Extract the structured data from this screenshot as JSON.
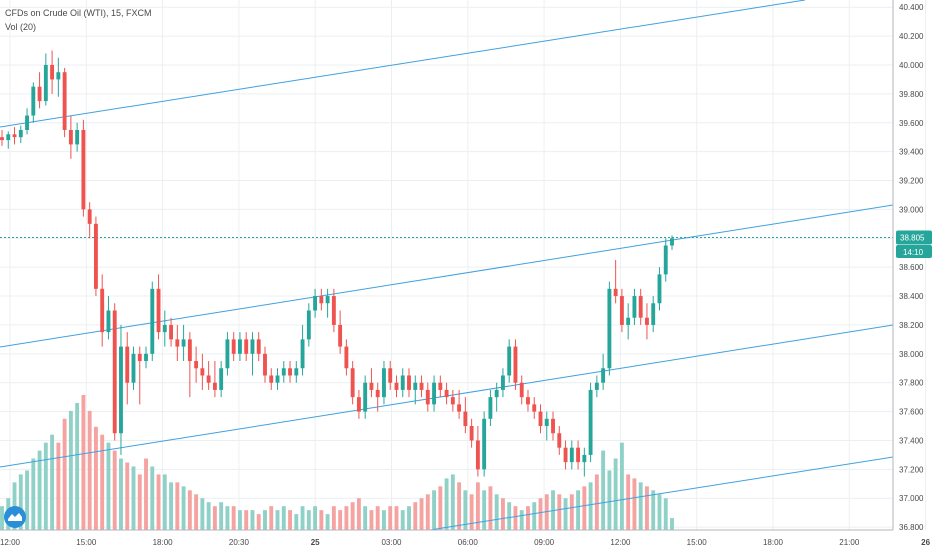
{
  "header": {
    "title": "CFDs on Crude Oil (WTI), 15, FXCM",
    "volume_label": "Vol (20)"
  },
  "colors": {
    "up": "#26a69a",
    "down": "#ef5350",
    "vol_up": "#8fd1c7",
    "vol_down": "#f5a3a1",
    "trend": "#3fa0e0",
    "grid": "#eceff2",
    "axis": "#b2b5be",
    "price_badge": "#2196f3"
  },
  "chart_data": {
    "type": "candlestick",
    "title": "CFDs on Crude Oil (WTI), 15, FXCM",
    "price_axis": {
      "ticks": [
        "40.400",
        "40.200",
        "40.000",
        "39.800",
        "39.600",
        "39.400",
        "39.200",
        "39.000",
        "38.800",
        "38.600",
        "38.400",
        "38.200",
        "38.000",
        "37.800",
        "37.600",
        "37.400",
        "37.200",
        "37.000",
        "36.800"
      ],
      "range": [
        36.78,
        40.45
      ]
    },
    "time_axis": {
      "ticks": [
        "12:00",
        "15:00",
        "18:00",
        "20:30",
        "25",
        "03:00",
        "06:00",
        "09:00",
        "12:00",
        "15:00",
        "18:00",
        "21:00",
        "26"
      ]
    },
    "last_price": "38.805",
    "countdown": "14:10",
    "candles": [
      [
        39.5,
        39.55,
        39.44,
        39.48
      ],
      [
        39.48,
        39.54,
        39.42,
        39.52
      ],
      [
        39.52,
        39.57,
        39.45,
        39.5
      ],
      [
        39.5,
        39.58,
        39.46,
        39.55
      ],
      [
        39.55,
        39.7,
        39.52,
        39.65
      ],
      [
        39.65,
        39.88,
        39.6,
        39.85
      ],
      [
        39.85,
        39.95,
        39.7,
        39.75
      ],
      [
        39.75,
        40.08,
        39.72,
        40.0
      ],
      [
        40.0,
        40.1,
        39.8,
        39.9
      ],
      [
        39.9,
        40.05,
        39.78,
        39.95
      ],
      [
        39.95,
        39.98,
        39.5,
        39.55
      ],
      [
        39.55,
        39.65,
        39.35,
        39.45
      ],
      [
        39.45,
        39.6,
        39.4,
        39.55
      ],
      [
        39.55,
        39.62,
        38.95,
        39.0
      ],
      [
        39.0,
        39.05,
        38.8,
        38.9
      ],
      [
        38.9,
        38.95,
        38.4,
        38.45
      ],
      [
        38.45,
        38.55,
        38.05,
        38.15
      ],
      [
        38.15,
        38.4,
        38.1,
        38.3
      ],
      [
        38.3,
        38.35,
        37.4,
        37.45
      ],
      [
        37.45,
        38.2,
        37.3,
        38.05
      ],
      [
        38.05,
        38.15,
        37.65,
        37.8
      ],
      [
        37.8,
        38.05,
        37.75,
        38.0
      ],
      [
        38.0,
        38.05,
        37.65,
        37.95
      ],
      [
        37.95,
        38.05,
        37.9,
        38.0
      ],
      [
        38.0,
        38.5,
        37.95,
        38.45
      ],
      [
        38.45,
        38.55,
        38.1,
        38.15
      ],
      [
        38.15,
        38.3,
        38.05,
        38.2
      ],
      [
        38.2,
        38.25,
        38.05,
        38.1
      ],
      [
        38.1,
        38.2,
        37.95,
        38.05
      ],
      [
        38.05,
        38.2,
        37.95,
        38.1
      ],
      [
        38.1,
        38.15,
        37.7,
        37.95
      ],
      [
        37.95,
        38.05,
        37.8,
        37.9
      ],
      [
        37.9,
        38.0,
        37.75,
        37.85
      ],
      [
        37.85,
        37.95,
        37.75,
        37.8
      ],
      [
        37.8,
        37.95,
        37.7,
        37.75
      ],
      [
        37.75,
        37.95,
        37.7,
        37.9
      ],
      [
        37.9,
        38.15,
        37.85,
        38.1
      ],
      [
        38.1,
        38.15,
        37.95,
        38.0
      ],
      [
        38.0,
        38.15,
        37.95,
        38.1
      ],
      [
        38.1,
        38.15,
        37.95,
        38.0
      ],
      [
        38.0,
        38.15,
        37.85,
        38.1
      ],
      [
        38.1,
        38.15,
        37.95,
        38.0
      ],
      [
        38.0,
        38.05,
        37.8,
        37.85
      ],
      [
        37.85,
        37.9,
        37.75,
        37.8
      ],
      [
        37.8,
        37.9,
        37.75,
        37.85
      ],
      [
        37.85,
        37.95,
        37.8,
        37.9
      ],
      [
        37.9,
        37.95,
        37.8,
        37.85
      ],
      [
        37.85,
        37.95,
        37.8,
        37.9
      ],
      [
        37.9,
        38.2,
        37.85,
        38.1
      ],
      [
        38.1,
        38.35,
        38.05,
        38.3
      ],
      [
        38.3,
        38.45,
        38.25,
        38.4
      ],
      [
        38.4,
        38.45,
        38.3,
        38.35
      ],
      [
        38.35,
        38.45,
        38.25,
        38.4
      ],
      [
        38.4,
        38.45,
        38.15,
        38.2
      ],
      [
        38.2,
        38.3,
        38.0,
        38.05
      ],
      [
        38.05,
        38.1,
        37.85,
        37.9
      ],
      [
        37.9,
        37.95,
        37.65,
        37.7
      ],
      [
        37.7,
        37.75,
        37.55,
        37.6
      ],
      [
        37.6,
        37.85,
        37.55,
        37.8
      ],
      [
        37.8,
        37.9,
        37.7,
        37.75
      ],
      [
        37.75,
        37.8,
        37.6,
        37.7
      ],
      [
        37.7,
        37.95,
        37.65,
        37.9
      ],
      [
        37.9,
        37.95,
        37.75,
        37.8
      ],
      [
        37.8,
        37.85,
        37.7,
        37.75
      ],
      [
        37.75,
        37.9,
        37.7,
        37.85
      ],
      [
        37.85,
        37.9,
        37.7,
        37.75
      ],
      [
        37.75,
        37.85,
        37.65,
        37.8
      ],
      [
        37.8,
        37.85,
        37.7,
        37.75
      ],
      [
        37.75,
        37.8,
        37.6,
        37.65
      ],
      [
        37.65,
        37.85,
        37.6,
        37.8
      ],
      [
        37.8,
        37.85,
        37.7,
        37.75
      ],
      [
        37.75,
        37.8,
        37.65,
        37.7
      ],
      [
        37.7,
        37.75,
        37.6,
        37.65
      ],
      [
        37.65,
        37.75,
        37.55,
        37.6
      ],
      [
        37.6,
        37.7,
        37.45,
        37.5
      ],
      [
        37.5,
        37.55,
        37.35,
        37.4
      ],
      [
        37.4,
        37.5,
        37.15,
        37.2
      ],
      [
        37.2,
        37.6,
        37.15,
        37.55
      ],
      [
        37.55,
        37.75,
        37.5,
        37.7
      ],
      [
        37.7,
        37.8,
        37.6,
        37.75
      ],
      [
        37.75,
        37.9,
        37.7,
        37.85
      ],
      [
        37.85,
        38.1,
        37.8,
        38.05
      ],
      [
        38.05,
        38.1,
        37.75,
        37.8
      ],
      [
        37.8,
        37.85,
        37.65,
        37.7
      ],
      [
        37.7,
        37.75,
        37.6,
        37.65
      ],
      [
        37.65,
        37.7,
        37.55,
        37.6
      ],
      [
        37.6,
        37.65,
        37.45,
        37.5
      ],
      [
        37.5,
        37.6,
        37.4,
        37.55
      ],
      [
        37.55,
        37.6,
        37.4,
        37.45
      ],
      [
        37.45,
        37.5,
        37.3,
        37.35
      ],
      [
        37.35,
        37.4,
        37.2,
        37.25
      ],
      [
        37.25,
        37.4,
        37.2,
        37.35
      ],
      [
        37.35,
        37.4,
        37.2,
        37.25
      ],
      [
        37.25,
        37.35,
        37.15,
        37.3
      ],
      [
        37.3,
        37.8,
        37.25,
        37.75
      ],
      [
        37.75,
        37.85,
        37.7,
        37.8
      ],
      [
        37.8,
        38.0,
        37.75,
        37.9
      ],
      [
        37.9,
        38.5,
        37.85,
        38.45
      ],
      [
        38.45,
        38.65,
        38.35,
        38.4
      ],
      [
        38.4,
        38.45,
        38.15,
        38.2
      ],
      [
        38.2,
        38.35,
        38.1,
        38.25
      ],
      [
        38.25,
        38.45,
        38.2,
        38.4
      ],
      [
        38.4,
        38.45,
        38.2,
        38.25
      ],
      [
        38.25,
        38.35,
        38.1,
        38.2
      ],
      [
        38.2,
        38.4,
        38.15,
        38.35
      ],
      [
        38.35,
        38.6,
        38.3,
        38.55
      ],
      [
        38.55,
        38.8,
        38.5,
        38.75
      ],
      [
        38.75,
        38.82,
        38.72,
        38.8
      ]
    ],
    "volumes": [
      [
        6,
        1
      ],
      [
        8,
        1
      ],
      [
        12,
        1
      ],
      [
        14,
        1
      ],
      [
        15,
        1
      ],
      [
        18,
        1
      ],
      [
        20,
        1
      ],
      [
        22,
        1
      ],
      [
        24,
        1
      ],
      [
        22,
        0
      ],
      [
        28,
        0
      ],
      [
        30,
        1
      ],
      [
        32,
        1
      ],
      [
        34,
        0
      ],
      [
        30,
        0
      ],
      [
        26,
        0
      ],
      [
        24,
        0
      ],
      [
        22,
        1
      ],
      [
        20,
        0
      ],
      [
        18,
        1
      ],
      [
        17,
        0
      ],
      [
        16,
        1
      ],
      [
        14,
        0
      ],
      [
        18,
        0
      ],
      [
        16,
        1
      ],
      [
        14,
        0
      ],
      [
        14,
        1
      ],
      [
        12,
        1
      ],
      [
        12,
        0
      ],
      [
        11,
        1
      ],
      [
        10,
        0
      ],
      [
        9,
        0
      ],
      [
        8,
        1
      ],
      [
        7,
        1
      ],
      [
        6,
        0
      ],
      [
        7,
        1
      ],
      [
        6,
        1
      ],
      [
        6,
        0
      ],
      [
        5,
        1
      ],
      [
        5,
        0
      ],
      [
        5,
        1
      ],
      [
        4,
        0
      ],
      [
        5,
        1
      ],
      [
        6,
        0
      ],
      [
        5,
        1
      ],
      [
        6,
        1
      ],
      [
        5,
        0
      ],
      [
        4,
        1
      ],
      [
        6,
        1
      ],
      [
        5,
        1
      ],
      [
        6,
        1
      ],
      [
        5,
        0
      ],
      [
        4,
        1
      ],
      [
        6,
        0
      ],
      [
        5,
        0
      ],
      [
        6,
        0
      ],
      [
        7,
        0
      ],
      [
        8,
        0
      ],
      [
        6,
        1
      ],
      [
        5,
        0
      ],
      [
        6,
        0
      ],
      [
        5,
        1
      ],
      [
        6,
        0
      ],
      [
        6,
        0
      ],
      [
        5,
        1
      ],
      [
        6,
        1
      ],
      [
        7,
        0
      ],
      [
        8,
        0
      ],
      [
        9,
        0
      ],
      [
        10,
        1
      ],
      [
        11,
        0
      ],
      [
        13,
        1
      ],
      [
        14,
        1
      ],
      [
        12,
        0
      ],
      [
        10,
        1
      ],
      [
        9,
        0
      ],
      [
        12,
        0
      ],
      [
        10,
        1
      ],
      [
        11,
        0
      ],
      [
        9,
        1
      ],
      [
        8,
        0
      ],
      [
        7,
        1
      ],
      [
        6,
        0
      ],
      [
        5,
        1
      ],
      [
        6,
        0
      ],
      [
        7,
        1
      ],
      [
        8,
        0
      ],
      [
        9,
        0
      ],
      [
        10,
        1
      ],
      [
        9,
        0
      ],
      [
        8,
        1
      ],
      [
        9,
        0
      ],
      [
        10,
        1
      ],
      [
        11,
        0
      ],
      [
        12,
        1
      ],
      [
        14,
        0
      ],
      [
        20,
        1
      ],
      [
        15,
        1
      ],
      [
        18,
        1
      ],
      [
        22,
        1
      ],
      [
        14,
        0
      ],
      [
        13,
        0
      ],
      [
        12,
        1
      ],
      [
        11,
        0
      ],
      [
        10,
        1
      ],
      [
        9,
        1
      ],
      [
        8,
        1
      ],
      [
        3,
        1
      ]
    ]
  }
}
